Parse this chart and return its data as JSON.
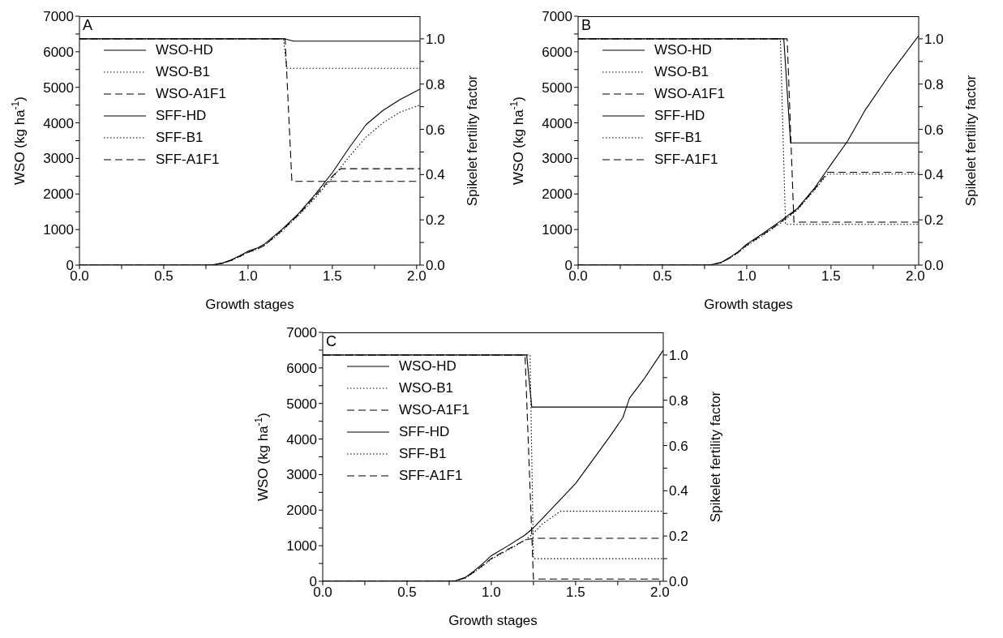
{
  "chart_data": [
    {
      "type": "line",
      "title": "A",
      "xlabel": "Growth stages",
      "ylabel": "WSO (kg ha$^{-1}$)",
      "y2label": "Spikelet fertility factor",
      "xlim": [
        0,
        2.02
      ],
      "xticks": [
        {
          "value": 0,
          "label": "0.0"
        },
        {
          "value": 0.25,
          "label": null
        },
        {
          "value": 0.5,
          "label": "0.5"
        },
        {
          "value": 0.75,
          "label": null
        },
        {
          "value": 1,
          "label": "1.0"
        },
        {
          "value": 1.25,
          "label": null
        },
        {
          "value": 1.5,
          "label": "1.5"
        },
        {
          "value": 1.75,
          "label": null
        },
        {
          "value": 2,
          "label": "2.0"
        }
      ],
      "ylim": [
        0,
        7000
      ],
      "yticks": [
        0,
        {
          "value": 500,
          "label": null
        },
        1000,
        {
          "value": 1500,
          "label": null
        },
        2000,
        {
          "value": 2500,
          "label": null
        },
        3000,
        {
          "value": 3500,
          "label": null
        },
        4000,
        {
          "value": 4500,
          "label": null
        },
        5000,
        {
          "value": 5500,
          "label": null
        },
        6000,
        {
          "value": 6500,
          "label": null
        },
        7000
      ],
      "y2lim": [
        0,
        1.1
      ],
      "y2ticks": [
        {
          "value": 0,
          "label": "0.0"
        },
        {
          "value": 0.1,
          "label": null
        },
        {
          "value": 0.2,
          "label": "0.2"
        },
        {
          "value": 0.3,
          "label": null
        },
        {
          "value": 0.4,
          "label": "0.4"
        },
        {
          "value": 0.5,
          "label": null
        },
        {
          "value": 0.6,
          "label": "0.6"
        },
        {
          "value": 0.7,
          "label": null
        },
        {
          "value": 0.8,
          "label": "0.8"
        },
        {
          "value": 0.9,
          "label": null
        },
        {
          "value": 1,
          "label": "1.0"
        }
      ],
      "legend": "top left",
      "series": [
        {
          "name": "WSO-HD",
          "color": "#000000",
          "line_style": "solid",
          "x": [
            0,
            0.78,
            0.85,
            0.9,
            0.95,
            1.0,
            1.05,
            1.1,
            1.2,
            1.3,
            1.4,
            1.5,
            1.6,
            1.7,
            1.8,
            1.9,
            2.02
          ],
          "values": [
            0,
            0,
            60,
            150,
            260,
            390,
            470,
            600,
            1000,
            1450,
            2000,
            2600,
            3300,
            3950,
            4350,
            4650,
            4950
          ]
        },
        {
          "name": "WSO-B1",
          "color": "#000000",
          "line_style": "dotted",
          "x": [
            0,
            0.78,
            0.85,
            0.9,
            0.95,
            1.0,
            1.05,
            1.1,
            1.2,
            1.3,
            1.4,
            1.5,
            1.6,
            1.7,
            1.8,
            1.9,
            2.02
          ],
          "values": [
            0,
            0,
            50,
            130,
            240,
            360,
            440,
            560,
            950,
            1400,
            1900,
            2450,
            3050,
            3600,
            4000,
            4300,
            4500
          ]
        },
        {
          "name": "WSO-A1F1",
          "color": "#000000",
          "line_style": "dashed",
          "x": [
            0,
            0.78,
            0.85,
            0.9,
            0.95,
            1.0,
            1.05,
            1.1,
            1.2,
            1.3,
            1.4,
            1.5,
            1.55,
            2.02
          ],
          "values": [
            0,
            0,
            50,
            130,
            240,
            360,
            440,
            560,
            970,
            1420,
            1950,
            2500,
            2710,
            2710
          ]
        },
        {
          "name": "SFF-HD",
          "color": "#000000",
          "line_style": "solid",
          "axis": "y2",
          "x": [
            0,
            1.22,
            1.27,
            2.02
          ],
          "values": [
            1,
            1,
            0.99,
            0.99
          ]
        },
        {
          "name": "SFF-B1",
          "color": "#000000",
          "line_style": "dotted",
          "axis": "y2",
          "x": [
            0,
            1.21,
            1.23,
            2.02
          ],
          "values": [
            1,
            1,
            0.87,
            0.87
          ]
        },
        {
          "name": "SFF-A1F1",
          "color": "#000000",
          "line_style": "dashed",
          "axis": "y2",
          "x": [
            0,
            1.22,
            1.26,
            2.02
          ],
          "values": [
            1,
            1,
            0.37,
            0.37
          ]
        }
      ]
    },
    {
      "type": "line",
      "title": "B",
      "xlabel": "Growth stages",
      "ylabel": "WSO (kg ha$^{-1}$)",
      "y2label": "Spikelet fertility factor",
      "xlim": [
        0,
        2.02
      ],
      "xticks": [
        {
          "value": 0,
          "label": "0.0"
        },
        {
          "value": 0.25,
          "label": null
        },
        {
          "value": 0.5,
          "label": "0.5"
        },
        {
          "value": 0.75,
          "label": null
        },
        {
          "value": 1,
          "label": "1.0"
        },
        {
          "value": 1.25,
          "label": null
        },
        {
          "value": 1.5,
          "label": "1.5"
        },
        {
          "value": 1.75,
          "label": null
        },
        {
          "value": 2,
          "label": "2.0"
        }
      ],
      "ylim": [
        0,
        7000
      ],
      "yticks": [
        0,
        {
          "value": 500,
          "label": null
        },
        1000,
        {
          "value": 1500,
          "label": null
        },
        2000,
        {
          "value": 2500,
          "label": null
        },
        3000,
        {
          "value": 3500,
          "label": null
        },
        4000,
        {
          "value": 4500,
          "label": null
        },
        5000,
        {
          "value": 5500,
          "label": null
        },
        6000,
        {
          "value": 6500,
          "label": null
        },
        7000
      ],
      "y2lim": [
        0,
        1.1
      ],
      "y2ticks": [
        {
          "value": 0,
          "label": "0.0"
        },
        {
          "value": 0.1,
          "label": null
        },
        {
          "value": 0.2,
          "label": "0.2"
        },
        {
          "value": 0.3,
          "label": null
        },
        {
          "value": 0.4,
          "label": "0.4"
        },
        {
          "value": 0.5,
          "label": null
        },
        {
          "value": 0.6,
          "label": "0.6"
        },
        {
          "value": 0.7,
          "label": null
        },
        {
          "value": 0.8,
          "label": "0.8"
        },
        {
          "value": 0.9,
          "label": null
        },
        {
          "value": 1,
          "label": "1.0"
        }
      ],
      "legend": "top left",
      "series": [
        {
          "name": "WSO-HD",
          "color": "#000000",
          "line_style": "solid",
          "x": [
            0,
            0.78,
            0.85,
            0.9,
            0.95,
            1.0,
            1.1,
            1.2,
            1.3,
            1.4,
            1.5,
            1.6,
            1.7,
            1.85,
            2.02
          ],
          "values": [
            0,
            0,
            80,
            220,
            380,
            590,
            900,
            1240,
            1590,
            2150,
            2830,
            3500,
            4340,
            5380,
            6450
          ]
        },
        {
          "name": "WSO-B1",
          "color": "#000000",
          "line_style": "dotted",
          "x": [
            0,
            0.78,
            0.85,
            0.9,
            0.95,
            1.0,
            1.1,
            1.2,
            1.3,
            1.4,
            1.48,
            2.02
          ],
          "values": [
            0,
            0,
            70,
            200,
            350,
            540,
            850,
            1180,
            1550,
            2100,
            2560,
            2560
          ]
        },
        {
          "name": "WSO-A1F1",
          "color": "#000000",
          "line_style": "dashed",
          "x": [
            0,
            0.78,
            0.85,
            0.9,
            0.95,
            1.0,
            1.1,
            1.2,
            1.3,
            1.4,
            1.48,
            2.02
          ],
          "values": [
            0,
            0,
            70,
            200,
            360,
            560,
            870,
            1200,
            1570,
            2120,
            2610,
            2610
          ]
        },
        {
          "name": "SFF-HD",
          "color": "#000000",
          "line_style": "solid",
          "axis": "y2",
          "x": [
            0,
            1.22,
            1.26,
            2.02
          ],
          "values": [
            1,
            1,
            0.54,
            0.54
          ]
        },
        {
          "name": "SFF-B1",
          "color": "#000000",
          "line_style": "dotted",
          "axis": "y2",
          "x": [
            0,
            1.2,
            1.23,
            2.02
          ],
          "values": [
            1,
            1,
            0.18,
            0.18
          ]
        },
        {
          "name": "SFF-A1F1",
          "color": "#000000",
          "line_style": "dashed",
          "axis": "y2",
          "x": [
            0,
            1.24,
            1.28,
            2.02
          ],
          "values": [
            1,
            1,
            0.19,
            0.19
          ]
        }
      ]
    },
    {
      "type": "line",
      "title": "C",
      "xlabel": "Growth stages",
      "ylabel": "WSO (kg ha$^{-1}$)",
      "y2label": "Spikelet fertility factor",
      "xlim": [
        0,
        2.02
      ],
      "xticks": [
        {
          "value": 0,
          "label": "0.0"
        },
        {
          "value": 0.25,
          "label": null
        },
        {
          "value": 0.5,
          "label": "0.5"
        },
        {
          "value": 0.75,
          "label": null
        },
        {
          "value": 1,
          "label": "1.0"
        },
        {
          "value": 1.25,
          "label": null
        },
        {
          "value": 1.5,
          "label": "1.5"
        },
        {
          "value": 1.75,
          "label": null
        },
        {
          "value": 2,
          "label": "2.0"
        }
      ],
      "ylim": [
        0,
        7000
      ],
      "yticks": [
        0,
        {
          "value": 500,
          "label": null
        },
        1000,
        {
          "value": 1500,
          "label": null
        },
        2000,
        {
          "value": 2500,
          "label": null
        },
        3000,
        {
          "value": 3500,
          "label": null
        },
        4000,
        {
          "value": 4500,
          "label": null
        },
        5000,
        {
          "value": 5500,
          "label": null
        },
        6000,
        {
          "value": 6500,
          "label": null
        },
        7000
      ],
      "y2lim": [
        0,
        1.1
      ],
      "y2ticks": [
        {
          "value": 0,
          "label": "0.0"
        },
        {
          "value": 0.1,
          "label": null
        },
        {
          "value": 0.2,
          "label": "0.2"
        },
        {
          "value": 0.3,
          "label": null
        },
        {
          "value": 0.4,
          "label": "0.4"
        },
        {
          "value": 0.5,
          "label": null
        },
        {
          "value": 0.6,
          "label": "0.6"
        },
        {
          "value": 0.7,
          "label": null
        },
        {
          "value": 0.8,
          "label": "0.8"
        },
        {
          "value": 0.9,
          "label": null
        },
        {
          "value": 1,
          "label": "1.0"
        }
      ],
      "legend": "top left",
      "series": [
        {
          "name": "WSO-HD",
          "color": "#000000",
          "line_style": "solid",
          "x": [
            0,
            0.78,
            0.85,
            0.9,
            0.95,
            1.0,
            1.1,
            1.2,
            1.25,
            1.4,
            1.5,
            1.6,
            1.7,
            1.78,
            1.82,
            1.9,
            2.02
          ],
          "values": [
            0,
            0,
            120,
            300,
            500,
            720,
            1000,
            1300,
            1500,
            2250,
            2750,
            3400,
            4050,
            4600,
            5150,
            5650,
            6500
          ]
        },
        {
          "name": "WSO-B1",
          "color": "#000000",
          "line_style": "dotted",
          "x": [
            0,
            0.78,
            0.85,
            0.9,
            0.95,
            1.0,
            1.1,
            1.2,
            1.25,
            1.3,
            1.41,
            2.02
          ],
          "values": [
            0,
            0,
            100,
            260,
            430,
            620,
            880,
            1150,
            1350,
            1600,
            1970,
            1970
          ]
        },
        {
          "name": "WSO-A1F1",
          "color": "#000000",
          "line_style": "dashed",
          "x": [
            0,
            0.78,
            0.85,
            0.9,
            0.95,
            1.0,
            1.1,
            1.2,
            1.25,
            2.02
          ],
          "values": [
            0,
            0,
            100,
            270,
            450,
            640,
            900,
            1160,
            1210,
            1210
          ]
        },
        {
          "name": "SFF-HD",
          "color": "#000000",
          "line_style": "solid",
          "axis": "y2",
          "x": [
            0,
            1.21,
            1.24,
            2.02
          ],
          "values": [
            1,
            1,
            0.77,
            0.77
          ]
        },
        {
          "name": "SFF-B1",
          "color": "#000000",
          "line_style": "dotted",
          "axis": "y2",
          "x": [
            0,
            1.23,
            1.25,
            2.02
          ],
          "values": [
            1,
            1,
            0.1,
            0.1
          ]
        },
        {
          "name": "SFF-A1F1",
          "color": "#000000",
          "line_style": "dashed",
          "axis": "y2",
          "x": [
            0,
            1.2,
            1.25,
            2.02
          ],
          "values": [
            1,
            1,
            0.01,
            0.01
          ]
        }
      ]
    }
  ]
}
